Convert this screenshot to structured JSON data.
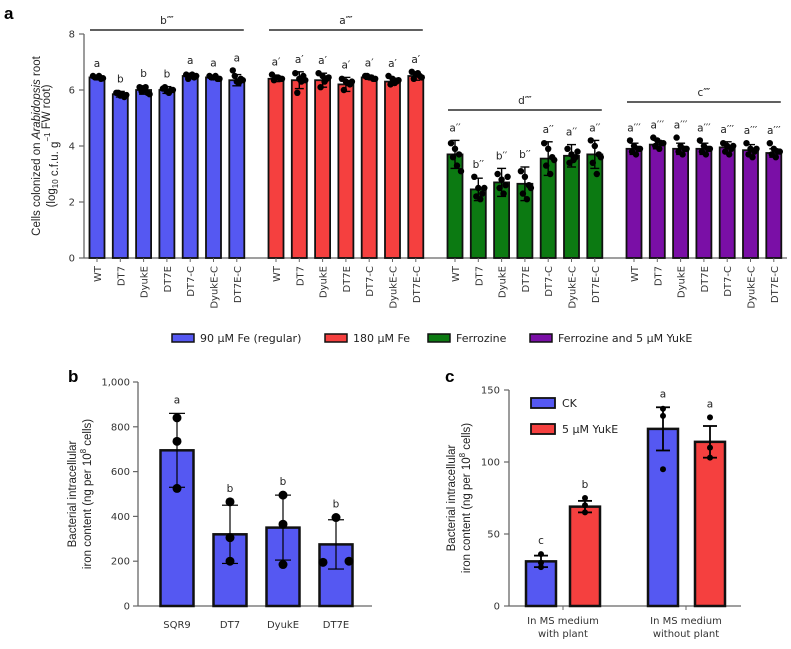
{
  "colors": {
    "blue": "#5558f2",
    "red": "#f5403f",
    "green": "#0c7a12",
    "purple": "#7a0fa6",
    "axis": "#666666",
    "outline": "#111111"
  },
  "chart_data": [
    {
      "panel": "a",
      "type": "bar",
      "ylabel_line1": "Cells colonized on Arabidopsis root",
      "ylabel_line1_plain": "Cells colonized on ",
      "ylabel_line1_italic": "Arabidopsis",
      "ylabel_line1_tail": " root",
      "ylabel_line2_pre": "(log",
      "ylabel_line2_sub": "10",
      "ylabel_line2_mid": " c.f.u. g",
      "ylabel_line2_sup": "−1",
      "ylabel_line2_post": " FW root)",
      "ylim": [
        0,
        8
      ],
      "yticks": [
        0,
        2,
        4,
        6,
        8
      ],
      "categories": [
        "WT",
        "DT7",
        "DyukE",
        "DT7E",
        "DT7-C",
        "DyukE-C",
        "DT7E-C"
      ],
      "groups": [
        {
          "name": "90 µM Fe (regular)",
          "color_key": "blue",
          "group_letter": "b''''",
          "values": [
            6.45,
            5.85,
            6.0,
            6.0,
            6.5,
            6.45,
            6.35
          ],
          "errors": [
            0.05,
            0.1,
            0.15,
            0.12,
            0.1,
            0.07,
            0.2
          ],
          "letters": [
            "a",
            "b",
            "b",
            "b",
            "a",
            "a",
            "a"
          ],
          "points": [
            [
              6.5,
              6.45,
              6.4,
              6.45,
              6.5,
              6.42
            ],
            [
              5.9,
              5.8,
              5.75,
              5.9,
              5.85,
              5.82
            ],
            [
              6.1,
              6.0,
              5.9,
              5.95,
              6.1,
              5.85
            ],
            [
              6.05,
              5.95,
              6.0,
              6.1,
              5.9,
              6.0
            ],
            [
              6.55,
              6.5,
              6.45,
              6.4,
              6.55,
              6.5
            ],
            [
              6.5,
              6.45,
              6.4,
              6.45,
              6.5,
              6.4
            ],
            [
              6.7,
              6.3,
              6.4,
              6.5,
              6.25,
              6.35
            ]
          ]
        },
        {
          "name": "180 µM Fe",
          "color_key": "red",
          "group_letter": "a''''",
          "values": [
            6.4,
            6.35,
            6.35,
            6.2,
            6.45,
            6.3,
            6.5
          ],
          "errors": [
            0.1,
            0.3,
            0.25,
            0.25,
            0.07,
            0.12,
            0.15
          ],
          "letters": [
            "a'",
            "a'",
            "a'",
            "a'",
            "a'",
            "a'",
            "a'"
          ],
          "points": [
            [
              6.55,
              6.45,
              6.4,
              6.35,
              6.45,
              6.4
            ],
            [
              6.6,
              6.4,
              6.5,
              5.9,
              6.3,
              6.35
            ],
            [
              6.6,
              6.5,
              6.4,
              6.1,
              6.3,
              6.45
            ],
            [
              6.4,
              6.3,
              6.2,
              6.0,
              6.25,
              6.3
            ],
            [
              6.5,
              6.45,
              6.4,
              6.5,
              6.45,
              6.4
            ],
            [
              6.5,
              6.4,
              6.3,
              6.2,
              6.25,
              6.35
            ],
            [
              6.65,
              6.55,
              6.5,
              6.4,
              6.6,
              6.45
            ]
          ]
        },
        {
          "name": "Ferrozine",
          "color_key": "green",
          "group_letter": "d''''",
          "values": [
            3.7,
            2.45,
            2.7,
            2.65,
            3.55,
            3.65,
            3.7
          ],
          "errors": [
            0.5,
            0.4,
            0.5,
            0.6,
            0.6,
            0.4,
            0.5
          ],
          "letters": [
            "a''",
            "b''",
            "b''",
            "b''",
            "a''",
            "a''",
            "a''"
          ],
          "points": [
            [
              4.1,
              3.9,
              3.7,
              3.6,
              3.3,
              3.1
            ],
            [
              2.9,
              2.5,
              2.3,
              2.2,
              2.1,
              2.5
            ],
            [
              3.0,
              2.8,
              2.6,
              2.5,
              2.3,
              2.9
            ],
            [
              3.1,
              2.9,
              2.6,
              2.3,
              2.1,
              2.5
            ],
            [
              4.1,
              3.9,
              3.6,
              3.3,
              3.0,
              3.5
            ],
            [
              3.9,
              3.7,
              3.6,
              3.4,
              3.5,
              3.8
            ],
            [
              4.2,
              4.0,
              3.7,
              3.4,
              3.0,
              3.6
            ]
          ]
        },
        {
          "name": "Ferrozine and 5 µM YukE",
          "color_key": "purple",
          "group_letter": "c''''",
          "values": [
            3.9,
            4.05,
            3.9,
            3.9,
            3.95,
            3.85,
            3.75
          ],
          "errors": [
            0.2,
            0.15,
            0.2,
            0.2,
            0.2,
            0.2,
            0.15
          ],
          "letters": [
            "a'''",
            "a'''",
            "a'''",
            "a'''",
            "a'''",
            "a'''",
            "a'''"
          ],
          "points": [
            [
              4.2,
              4.0,
              3.9,
              3.8,
              3.7,
              3.9
            ],
            [
              4.3,
              4.2,
              4.1,
              4.0,
              3.9,
              4.1
            ],
            [
              4.3,
              4.0,
              3.9,
              3.8,
              3.7,
              3.9
            ],
            [
              4.2,
              4.0,
              3.9,
              3.8,
              3.7,
              3.9
            ],
            [
              4.1,
              4.0,
              3.9,
              3.8,
              3.7,
              4.0
            ],
            [
              4.1,
              3.9,
              3.8,
              3.7,
              3.6,
              3.9
            ],
            [
              4.1,
              3.9,
              3.8,
              3.7,
              3.6,
              3.8
            ]
          ]
        }
      ]
    },
    {
      "panel": "b",
      "type": "bar",
      "ylabel_line1": "Bacterial intracellular",
      "ylabel_line2_pre": "iron content (ng per 10",
      "ylabel_line2_sup": "8",
      "ylabel_line2_post": " cells)",
      "ylim": [
        0,
        1000
      ],
      "yticks": [
        0,
        200,
        400,
        600,
        800,
        1000
      ],
      "ytick_labels": [
        "0",
        "200",
        "400",
        "600",
        "800",
        "1,000"
      ],
      "categories": [
        "SQR9",
        "DT7",
        "DyukE",
        "DT7E"
      ],
      "color_key": "blue",
      "values": [
        695,
        320,
        350,
        275
      ],
      "errors": [
        165,
        130,
        145,
        110
      ],
      "letters": [
        "a",
        "b",
        "b",
        "b"
      ],
      "points": [
        [
          840,
          735,
          525
        ],
        [
          465,
          305,
          200
        ],
        [
          495,
          365,
          185
        ],
        [
          395,
          195,
          200
        ]
      ]
    },
    {
      "panel": "c",
      "type": "bar",
      "ylabel_line1": "Bacterial intracellular",
      "ylabel_line2_pre": "iron content (ng per 10",
      "ylabel_line2_sup": "8",
      "ylabel_line2_post": " cells)",
      "ylim": [
        0,
        150
      ],
      "yticks": [
        0,
        50,
        100,
        150
      ],
      "categories": [
        [
          "In MS medium",
          "with plant"
        ],
        [
          "In MS medium",
          "without plant"
        ]
      ],
      "legend": [
        {
          "label": "CK",
          "color_key": "blue"
        },
        {
          "label": "5 µM YukE",
          "color_key": "red"
        }
      ],
      "series": [
        {
          "name": "CK",
          "color_key": "blue",
          "values": [
            31,
            123
          ],
          "errors": [
            4,
            15
          ],
          "letters": [
            "c",
            "a"
          ],
          "points": [
            [
              36,
              30,
              27
            ],
            [
              137,
              132,
              95
            ]
          ]
        },
        {
          "name": "5 µM YukE",
          "color_key": "red",
          "values": [
            69,
            114
          ],
          "errors": [
            4,
            11
          ],
          "letters": [
            "b",
            "a"
          ],
          "points": [
            [
              75,
              70,
              65
            ],
            [
              131,
              110,
              103
            ]
          ]
        }
      ]
    }
  ],
  "panel_labels": [
    "a",
    "b",
    "c"
  ]
}
